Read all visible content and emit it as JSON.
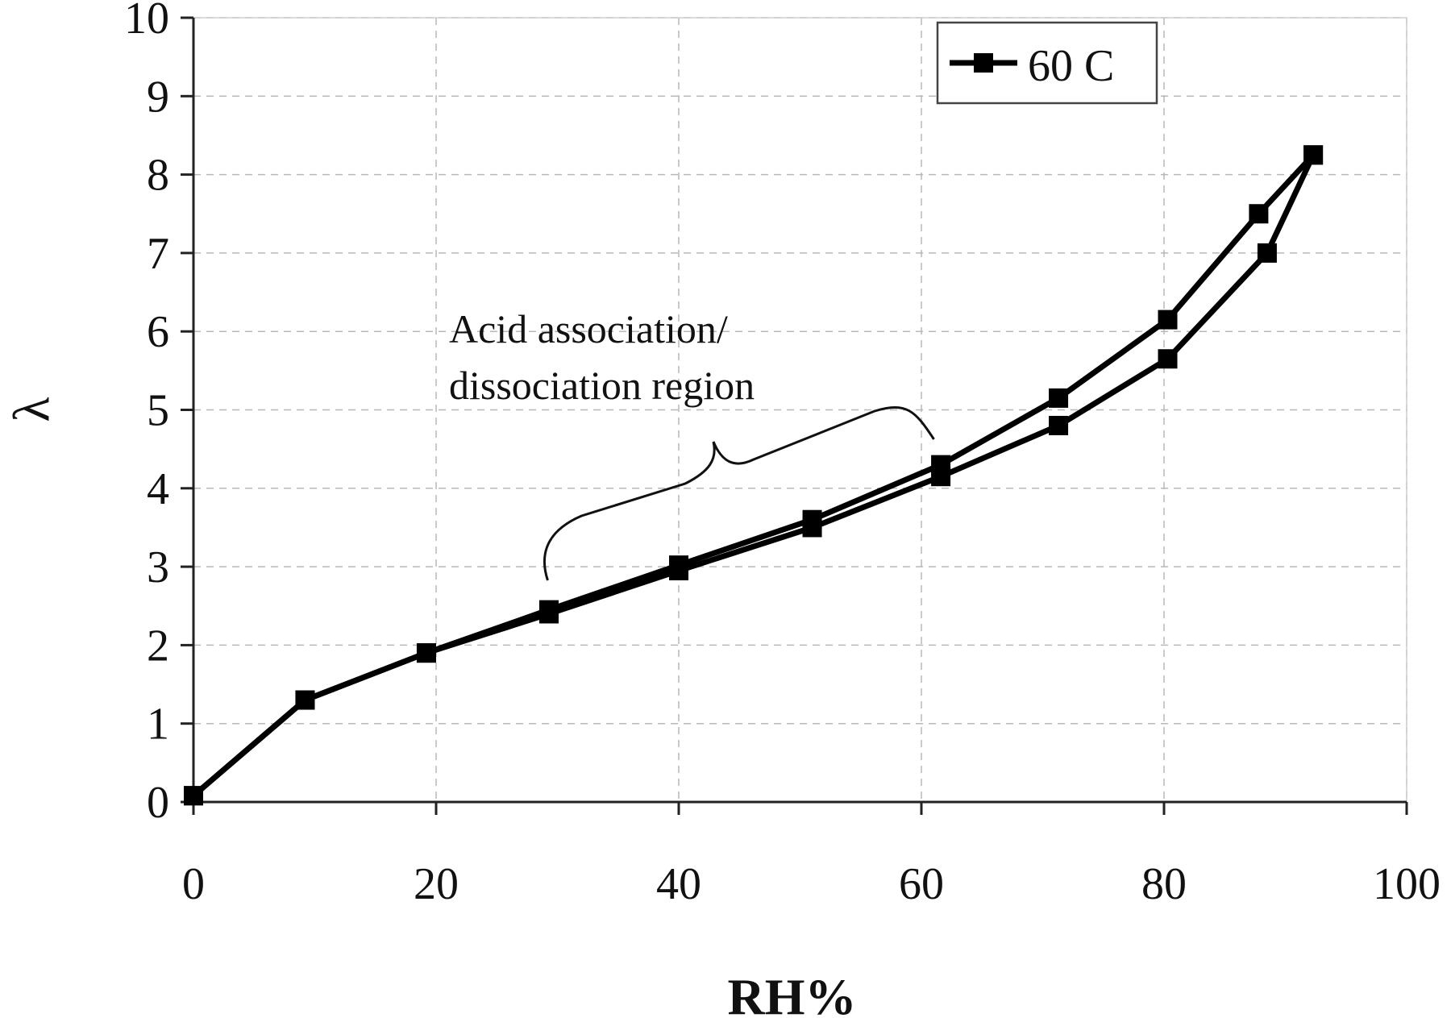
{
  "chart_data": {
    "type": "line",
    "xlabel": "RH%",
    "ylabel": "λ",
    "xlim": [
      0,
      100
    ],
    "ylim": [
      0,
      10
    ],
    "x_ticks": [
      "0",
      "20",
      "40",
      "60",
      "80",
      "100"
    ],
    "y_ticks": [
      "0",
      "1",
      "2",
      "3",
      "4",
      "5",
      "6",
      "7",
      "8",
      "9",
      "10"
    ],
    "grid": true,
    "legend_position": "top-right",
    "colors": {
      "series": "#000000",
      "grid": "#b8b8b8",
      "axis": "#222222"
    },
    "series": [
      {
        "name": "60 C",
        "segments": [
          {
            "x": [
              0,
              9.2,
              19.2,
              29.3,
              40.0,
              51.0,
              61.6,
              71.3,
              80.3,
              87.8,
              92.3
            ],
            "y": [
              0.08,
              1.3,
              1.9,
              2.45,
              3.02,
              3.6,
              4.3,
              5.15,
              6.15,
              7.5,
              8.25
            ]
          },
          {
            "x": [
              92.3,
              88.5,
              80.3,
              71.3,
              61.6,
              51.0,
              40.0,
              29.3,
              19.2,
              9.2,
              0
            ],
            "y": [
              8.25,
              7.0,
              5.65,
              4.8,
              4.15,
              3.5,
              2.95,
              2.4,
              1.9,
              1.3,
              0.08
            ]
          }
        ]
      }
    ],
    "annotations": [
      {
        "lines": [
          "Acid association/",
          "dissociation region"
        ],
        "x_range": [
          29,
          60.5
        ]
      }
    ]
  }
}
